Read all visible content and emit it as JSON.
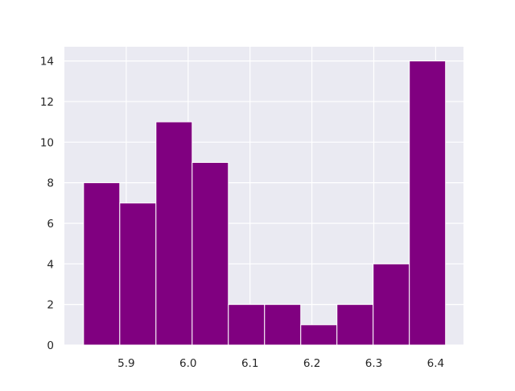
{
  "chart_data": {
    "type": "bar",
    "subtype": "histogram",
    "title": "",
    "xlabel": "",
    "ylabel": "",
    "bin_edges": [
      5.831,
      5.8895,
      5.948,
      6.0065,
      6.065,
      6.1235,
      6.182,
      6.2405,
      6.299,
      6.3575,
      6.416
    ],
    "values": [
      8,
      7,
      11,
      9,
      2,
      2,
      1,
      2,
      4,
      14
    ],
    "xlim": [
      5.8,
      6.445
    ],
    "ylim": [
      0,
      14.7
    ],
    "x_ticks": [
      5.9,
      6.0,
      6.1,
      6.2,
      6.3,
      6.4
    ],
    "x_tick_labels": [
      "5.9",
      "6.0",
      "6.1",
      "6.2",
      "6.3",
      "6.4"
    ],
    "y_ticks": [
      0,
      2,
      4,
      6,
      8,
      10,
      12,
      14
    ],
    "y_tick_labels": [
      "0",
      "2",
      "4",
      "6",
      "8",
      "10",
      "12",
      "14"
    ],
    "grid": true,
    "bar_color": "#800080",
    "background_color": "#eaeaf2",
    "grid_color": "#ffffff"
  }
}
